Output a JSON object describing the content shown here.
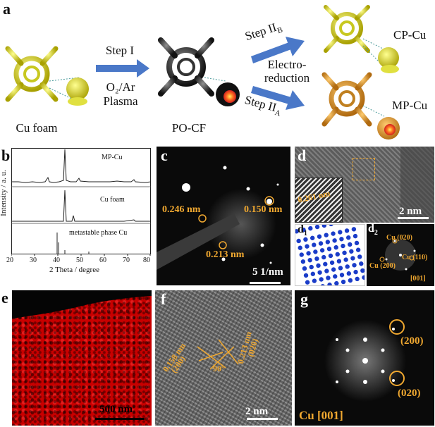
{
  "panel_labels": {
    "a": "a",
    "b": "b",
    "c": "c",
    "d": "d",
    "d1": "d",
    "d1_sub": "1",
    "d2": "d",
    "d2_sub": "2",
    "e": "e",
    "f": "f",
    "g": "g"
  },
  "schematic": {
    "cu_foam": "Cu foam",
    "po_cf": "PO-CF",
    "cp_cu": "CP-Cu",
    "mp_cu": "MP-Cu",
    "step1": "Step I",
    "plasma_line1": "O₂/Ar",
    "plasma_line2": "Plasma",
    "step2b": "Step II",
    "step2b_sub": "B",
    "step2a": "Step II",
    "step2a_sub": "A",
    "electro_line1": "Electro-",
    "electro_line2": "reduction"
  },
  "xrd": {
    "ylabel": "Intensity / a. u.",
    "xlabel": "2 Theta / degree",
    "series": [
      "MP-Cu",
      "Cu foam",
      "metastable phase Cu"
    ],
    "xticks": [
      "20",
      "30",
      "40",
      "50",
      "60",
      "70",
      "80"
    ]
  },
  "saed": {
    "d1": "0.246 nm",
    "d2": "0.150 nm",
    "d3": "0.213 nm",
    "scale": "5 1/nm"
  },
  "hrtem_d": {
    "inset": "0.261 nm",
    "scale": "2 nm"
  },
  "fft_d2": {
    "p020": "Cu (020)",
    "p110": "Cu (110)",
    "p200": "Cu (200)",
    "zone": "[001]"
  },
  "map_e": {
    "scale": "500 nm"
  },
  "hrtem_f": {
    "s1": "0.158 nm",
    "s2": "(200)",
    "angle": "90°",
    "s3": "0.213 nm",
    "s4": "(020)",
    "scale": "2 nm"
  },
  "fft_g": {
    "p200": "(200)",
    "p020": "(020)",
    "zone": "Cu [001]"
  },
  "colors": {
    "arrow": "#4a78c8",
    "gold": "#f0a830",
    "copper_gold": "#e0a040",
    "yellow": "#e6e632"
  }
}
